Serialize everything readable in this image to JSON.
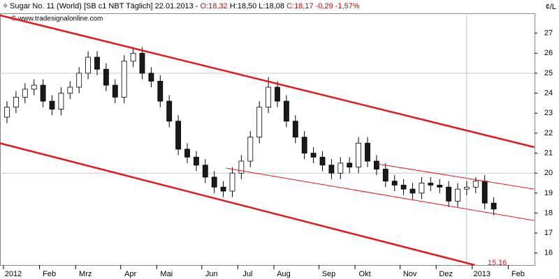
{
  "chart_data": {
    "type": "candlestick",
    "title": "Sugar No. 11 (World) [SB c1 NBT  Täglich] 22.01.2013 -",
    "ohlc_text": {
      "open": "O:18,32",
      "high_low": "H:18,50 L:18,08",
      "close": "C:18,17 -0,29 -1,57%"
    },
    "unit": "¢/L",
    "source": "© www.tradesignalonline.com",
    "categories": [
      "2012",
      null,
      null,
      null,
      "Feb",
      null,
      null,
      null,
      "Mrz",
      null,
      null,
      null,
      null,
      "Apr",
      null,
      null,
      null,
      "Mai",
      null,
      null,
      null,
      null,
      "Jun",
      null,
      null,
      null,
      "Jul",
      null,
      null,
      null,
      "Aug",
      null,
      null,
      null,
      null,
      "Sep",
      null,
      null,
      null,
      "Okt",
      null,
      null,
      null,
      null,
      "Nov",
      null,
      null,
      null,
      "Dez",
      null,
      null,
      null,
      "2013",
      null,
      null,
      null,
      "Feb"
    ],
    "open": [
      22.8,
      23.3,
      23.8,
      24.2,
      24.4,
      23.6,
      23.2,
      24.0,
      24.3,
      25.0,
      25.8,
      25.2,
      24.4,
      23.8,
      25.6,
      26.0,
      25.0,
      24.6,
      23.6,
      22.6,
      21.2,
      20.8,
      20.4,
      19.8,
      19.3,
      19.1,
      20.0,
      20.6,
      21.8,
      23.3,
      24.3,
      23.6,
      22.6,
      21.8,
      21.0,
      20.8,
      20.4,
      20.0,
      20.5,
      20.3,
      21.5,
      20.6,
      20.2,
      19.6,
      19.4,
      19.2,
      19.0,
      19.5,
      19.4,
      19.3,
      18.6,
      19.2,
      19.3,
      19.6,
      18.5,
      null,
      null
    ],
    "high": [
      23.6,
      24.1,
      24.5,
      24.7,
      24.7,
      23.9,
      24.3,
      24.6,
      25.3,
      26.1,
      26.1,
      25.5,
      24.7,
      25.9,
      26.3,
      26.3,
      25.3,
      24.9,
      23.9,
      22.9,
      21.5,
      21.1,
      20.7,
      20.1,
      19.6,
      20.3,
      20.9,
      22.1,
      23.6,
      24.8,
      24.6,
      23.9,
      22.9,
      22.1,
      21.3,
      21.1,
      20.7,
      20.8,
      20.8,
      21.8,
      21.8,
      20.9,
      20.5,
      19.9,
      19.7,
      19.5,
      19.8,
      19.8,
      19.7,
      19.6,
      19.5,
      19.6,
      19.8,
      19.9,
      18.8,
      null,
      null
    ],
    "low": [
      22.5,
      23.0,
      23.5,
      23.9,
      23.3,
      22.9,
      22.9,
      23.7,
      24.0,
      24.7,
      24.9,
      24.1,
      23.5,
      23.5,
      25.3,
      24.7,
      24.3,
      23.3,
      22.3,
      20.9,
      20.5,
      20.1,
      19.5,
      19.0,
      18.8,
      18.8,
      19.7,
      20.3,
      21.5,
      23.0,
      23.3,
      22.3,
      21.5,
      20.7,
      20.5,
      20.1,
      19.7,
      19.7,
      20.0,
      20.0,
      20.3,
      19.9,
      19.3,
      19.1,
      18.9,
      18.7,
      18.7,
      19.1,
      19.0,
      18.3,
      18.3,
      18.9,
      19.0,
      18.2,
      17.9,
      null,
      null
    ],
    "close": [
      23.3,
      23.8,
      24.2,
      24.4,
      23.6,
      23.2,
      24.0,
      24.3,
      25.0,
      25.8,
      25.2,
      24.4,
      23.8,
      25.6,
      26.0,
      25.0,
      24.6,
      23.6,
      22.6,
      21.2,
      20.8,
      20.4,
      19.8,
      19.3,
      19.1,
      20.0,
      20.6,
      21.8,
      23.3,
      24.3,
      23.6,
      22.6,
      21.8,
      21.0,
      20.8,
      20.4,
      20.0,
      20.5,
      20.3,
      21.5,
      20.6,
      20.2,
      19.6,
      19.4,
      19.2,
      19.0,
      19.5,
      19.4,
      19.3,
      18.6,
      19.2,
      19.3,
      19.6,
      18.5,
      18.2,
      null,
      null
    ],
    "up_color": "#ffffff",
    "down_color": "#1a1a1a",
    "ylim": [
      15.4,
      28.0
    ],
    "yticks": [
      16,
      17,
      18,
      19,
      20,
      21,
      22,
      23,
      24,
      25,
      26,
      27
    ],
    "grid_y": [
      20,
      25
    ],
    "grid_x": [
      52
    ],
    "trendlines": [
      {
        "from": [
          -0.8,
          27.9
        ],
        "to": [
          58.5,
          21.3
        ],
        "color": "#e8161b",
        "width": 2.5
      },
      {
        "from": [
          -0.8,
          21.5
        ],
        "to": [
          51.9,
          15.4
        ],
        "color": "#e8161b",
        "width": 2.5,
        "end_label": "15,16"
      },
      {
        "from": [
          41.1,
          20.46
        ],
        "to": [
          58.5,
          19.2
        ],
        "color": "#e8161b",
        "width": 1
      },
      {
        "from": [
          24.3,
          20.25
        ],
        "to": [
          58.5,
          17.63
        ],
        "color": "#e8161b",
        "width": 1
      }
    ]
  }
}
